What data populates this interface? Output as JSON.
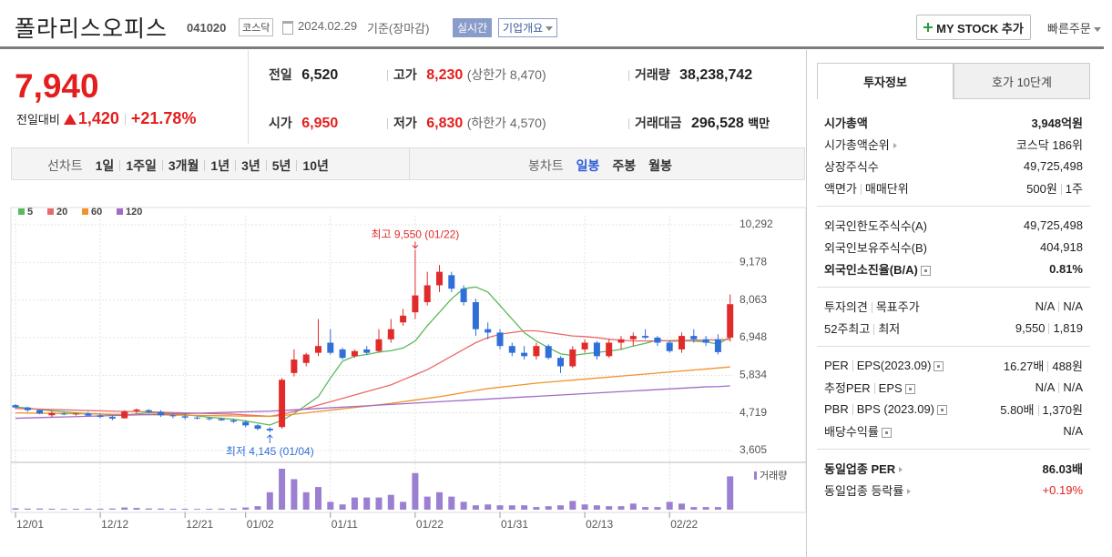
{
  "header": {
    "title": "폴라리스오피스",
    "code": "041020",
    "market": "코스닥",
    "date": "2024.02.29",
    "basis": "기준(장마감)",
    "realtime": "실시간",
    "company": "기업개요",
    "mystock": "MY STOCK 추가",
    "quick_order": "빠른주문"
  },
  "quote": {
    "price": "7,940",
    "change_label": "전일대비",
    "change": "1,420",
    "rate": "+21.78%",
    "items": [
      {
        "label": "전일",
        "value": "6,520"
      },
      {
        "label": "고가",
        "value": "8,230",
        "note": "(상한가 8,470)"
      },
      {
        "label": "거래량",
        "value": "38,238,742"
      },
      {
        "label": "시가",
        "value": "6,950"
      },
      {
        "label": "저가",
        "value": "6,830",
        "note": "(하한가 4,570)"
      },
      {
        "label": "거래대금",
        "value": "296,528",
        "unit": "백만"
      }
    ]
  },
  "periods": {
    "line_label": "선차트",
    "line": [
      "1일",
      "1주일",
      "3개월",
      "1년",
      "3년",
      "5년",
      "10년"
    ],
    "candle_label": "봉차트",
    "candle": [
      "일봉",
      "주봉",
      "월봉"
    ]
  },
  "chart": {
    "type": "candlestick",
    "ylim": [
      3335,
      10562
    ],
    "yticks": [
      {
        "value": 10292,
        "label": "10,292"
      },
      {
        "value": 9178,
        "label": "9,178"
      },
      {
        "value": 8063,
        "label": "8,063"
      },
      {
        "value": 6948,
        "label": "6,948"
      },
      {
        "value": 5834,
        "label": "5,834"
      },
      {
        "value": 4719,
        "label": "4,719"
      },
      {
        "value": 3605,
        "label": "3,605"
      }
    ],
    "grid": true,
    "up_color": "#e12b2b",
    "down_color": "#2f6fd8",
    "volume_color": "#9b7fd0",
    "annotations": {
      "high": "최고 9,550 (01/22)",
      "low": "최저 4,145 (01/04)"
    },
    "volume_label": "거래량",
    "categories": [
      "12/01",
      null,
      null,
      null,
      null,
      null,
      null,
      "12/12",
      null,
      null,
      null,
      null,
      null,
      null,
      "12/21",
      null,
      null,
      null,
      null,
      "01/02",
      null,
      null,
      null,
      null,
      null,
      null,
      "01/11",
      null,
      null,
      null,
      null,
      null,
      null,
      "01/22",
      null,
      null,
      null,
      null,
      null,
      null,
      "01/31",
      null,
      null,
      null,
      null,
      null,
      null,
      "02/13",
      null,
      null,
      null,
      null,
      null,
      null,
      "02/22",
      null,
      null,
      null,
      null,
      null
    ],
    "candles": [
      [
        4950,
        4980,
        4850,
        4880
      ],
      [
        4880,
        4900,
        4750,
        4800
      ],
      [
        4800,
        4820,
        4680,
        4700
      ],
      [
        4650,
        4780,
        4600,
        4720
      ],
      [
        4700,
        4750,
        4650,
        4680
      ],
      [
        4700,
        4720,
        4640,
        4700
      ],
      [
        4700,
        4750,
        4600,
        4640
      ],
      [
        4650,
        4700,
        4560,
        4600
      ],
      [
        4600,
        4650,
        4500,
        4550
      ],
      [
        4560,
        4800,
        4550,
        4760
      ],
      [
        4780,
        4850,
        4700,
        4820
      ],
      [
        4800,
        4830,
        4700,
        4750
      ],
      [
        4750,
        4800,
        4600,
        4650
      ],
      [
        4650,
        4700,
        4560,
        4620
      ],
      [
        4620,
        4680,
        4520,
        4580
      ],
      [
        4580,
        4620,
        4520,
        4560
      ],
      [
        4560,
        4600,
        4500,
        4540
      ],
      [
        4540,
        4580,
        4480,
        4500
      ],
      [
        4500,
        4540,
        4420,
        4460
      ],
      [
        4450,
        4500,
        4300,
        4350
      ],
      [
        4350,
        4380,
        4200,
        4250
      ],
      [
        4250,
        4300,
        4145,
        4200
      ],
      [
        4300,
        5750,
        4250,
        5700
      ],
      [
        5900,
        6600,
        5800,
        6300
      ],
      [
        6200,
        6500,
        6100,
        6450
      ],
      [
        6500,
        7500,
        6400,
        6700
      ],
      [
        6800,
        7200,
        6450,
        6500
      ],
      [
        6600,
        6650,
        6300,
        6350
      ],
      [
        6400,
        6600,
        6350,
        6550
      ],
      [
        6600,
        6700,
        6450,
        6500
      ],
      [
        6550,
        7200,
        6500,
        6900
      ],
      [
        6900,
        7500,
        6800,
        7200
      ],
      [
        7400,
        7800,
        7300,
        7600
      ],
      [
        7700,
        9550,
        7500,
        8200
      ],
      [
        8000,
        8900,
        7900,
        8500
      ],
      [
        8500,
        9100,
        8300,
        8900
      ],
      [
        8800,
        8900,
        8300,
        8400
      ],
      [
        8400,
        8500,
        7900,
        8000
      ],
      [
        8000,
        8100,
        7000,
        7200
      ],
      [
        7200,
        7400,
        6900,
        7100
      ],
      [
        7100,
        7200,
        6600,
        6700
      ],
      [
        6700,
        6800,
        6400,
        6500
      ],
      [
        6500,
        6700,
        6300,
        6400
      ],
      [
        6400,
        6800,
        6300,
        6700
      ],
      [
        6700,
        6750,
        6300,
        6350
      ],
      [
        6350,
        6400,
        5900,
        6100
      ],
      [
        6100,
        6700,
        6050,
        6600
      ],
      [
        6600,
        6900,
        6500,
        6800
      ],
      [
        6800,
        6850,
        6300,
        6400
      ],
      [
        6400,
        6900,
        6350,
        6800
      ],
      [
        6800,
        7000,
        6600,
        6900
      ],
      [
        6900,
        7100,
        6700,
        7000
      ],
      [
        7000,
        7200,
        6900,
        6950
      ],
      [
        6950,
        7000,
        6700,
        6800
      ],
      [
        6800,
        6850,
        6500,
        6550
      ],
      [
        6600,
        7100,
        6500,
        7000
      ],
      [
        7000,
        7200,
        6800,
        6900
      ],
      [
        6900,
        7000,
        6700,
        6800
      ],
      [
        6900,
        7050,
        6450,
        6520
      ],
      [
        6950,
        8230,
        6830,
        7940
      ]
    ],
    "volume": [
      1500000,
      1200000,
      1300000,
      1100000,
      900000,
      1000000,
      1200000,
      1100000,
      1300000,
      2500000,
      2000000,
      1400000,
      1300000,
      1100000,
      1000000,
      900000,
      1000000,
      1200000,
      1300000,
      2500000,
      4000000,
      20000000,
      47000000,
      35000000,
      20000000,
      26000000,
      9000000,
      6000000,
      14000000,
      14000000,
      14000000,
      17000000,
      9000000,
      42000000,
      15000000,
      20000000,
      15000000,
      9000000,
      5000000,
      6000000,
      5000000,
      5000000,
      5000000,
      3000000,
      4000000,
      5000000,
      10000000,
      6000000,
      5000000,
      4000000,
      4000000,
      7000000,
      3000000,
      3000000,
      9000000,
      7000000,
      3000000,
      3000000,
      3000000,
      38238742
    ],
    "series": [
      {
        "name": "5",
        "color": "#5cb85c",
        "values": [
          4900,
          4860,
          4820,
          4780,
          4750,
          4720,
          4700,
          4690,
          4650,
          4660,
          4690,
          4720,
          4720,
          4700,
          4670,
          4630,
          4590,
          4560,
          4530,
          4480,
          4420,
          4360,
          4500,
          4700,
          4950,
          5200,
          5750,
          6250,
          6400,
          6450,
          6520,
          6560,
          6640,
          6850,
          7300,
          7700,
          8100,
          8400,
          8450,
          8300,
          7900,
          7500,
          7100,
          6850,
          6650,
          6470,
          6420,
          6470,
          6510,
          6550,
          6600,
          6700,
          6780,
          6880,
          6840,
          6850,
          6850,
          6820,
          6760,
          6960
        ]
      },
      {
        "name": "20",
        "color": "#e86a6a",
        "values": [
          4850,
          4840,
          4830,
          4820,
          4810,
          4800,
          4790,
          4780,
          4770,
          4760,
          4760,
          4750,
          4740,
          4730,
          4720,
          4710,
          4700,
          4690,
          4680,
          4660,
          4640,
          4620,
          4680,
          4760,
          4850,
          4950,
          5050,
          5150,
          5250,
          5350,
          5450,
          5550,
          5700,
          5850,
          6000,
          6200,
          6400,
          6600,
          6800,
          6950,
          7050,
          7100,
          7150,
          7150,
          7100,
          7050,
          7000,
          6980,
          6950,
          6900,
          6870,
          6850,
          6850,
          6850,
          6860,
          6870,
          6870,
          6880,
          6880,
          6900
        ]
      },
      {
        "name": "60",
        "color": "#f0932b",
        "values": [
          4720,
          4715,
          4710,
          4705,
          4700,
          4695,
          4690,
          4685,
          4680,
          4675,
          4670,
          4665,
          4660,
          4655,
          4650,
          4645,
          4640,
          4635,
          4630,
          4625,
          4620,
          4615,
          4640,
          4680,
          4720,
          4760,
          4800,
          4840,
          4880,
          4920,
          4960,
          5000,
          5050,
          5100,
          5150,
          5200,
          5260,
          5320,
          5380,
          5440,
          5480,
          5520,
          5560,
          5600,
          5630,
          5660,
          5690,
          5720,
          5750,
          5780,
          5810,
          5840,
          5870,
          5900,
          5930,
          5960,
          5990,
          6020,
          6050,
          6080
        ]
      },
      {
        "name": "120",
        "color": "#a06cc8",
        "values": [
          4560,
          4570,
          4580,
          4590,
          4600,
          4610,
          4620,
          4630,
          4640,
          4650,
          4660,
          4670,
          4680,
          4690,
          4700,
          4710,
          4720,
          4730,
          4740,
          4750,
          4760,
          4770,
          4790,
          4810,
          4830,
          4850,
          4870,
          4890,
          4910,
          4930,
          4950,
          4970,
          4990,
          5010,
          5030,
          5050,
          5070,
          5090,
          5110,
          5130,
          5150,
          5170,
          5190,
          5210,
          5230,
          5250,
          5270,
          5290,
          5310,
          5330,
          5350,
          5370,
          5390,
          5410,
          5430,
          5450,
          5470,
          5490,
          5500,
          5520
        ]
      }
    ]
  },
  "info": {
    "tabs": [
      "투자정보",
      "호가 10단계"
    ],
    "rows": [
      {
        "label": "시가총액",
        "value": "3,948억원"
      },
      {
        "label": "시가총액순위",
        "value": "코스닥 186위"
      },
      {
        "label": "상장주식수",
        "value": "49,725,498"
      },
      {
        "label": [
          "액면가",
          "매매단위"
        ],
        "value": [
          "500원",
          "1주"
        ]
      },
      {
        "label": "외국인한도주식수(A)",
        "value": "49,725,498"
      },
      {
        "label": "외국인보유주식수(B)",
        "value": "404,918"
      },
      {
        "label": "외국인소진율(B/A)",
        "value": "0.81%"
      },
      {
        "label": [
          "투자의견",
          "목표주가"
        ],
        "value": [
          "N/A",
          "N/A"
        ]
      },
      {
        "label": [
          "52주최고",
          "최저"
        ],
        "value": [
          "9,550",
          "1,819"
        ]
      },
      {
        "label": [
          "PER",
          "EPS(2023.09)"
        ],
        "value": [
          "16.27배",
          "488원"
        ]
      },
      {
        "label": [
          "추정PER",
          "EPS"
        ],
        "value": [
          "N/A",
          "N/A"
        ]
      },
      {
        "label": [
          "PBR",
          "BPS (2023.09)"
        ],
        "value": [
          "5.80배",
          "1,370원"
        ]
      },
      {
        "label": "배당수익률",
        "value": "N/A"
      },
      {
        "label": "동일업종 PER",
        "value": "86.03배"
      },
      {
        "label": "동일업종 등락률",
        "value": "+0.19%"
      }
    ]
  }
}
